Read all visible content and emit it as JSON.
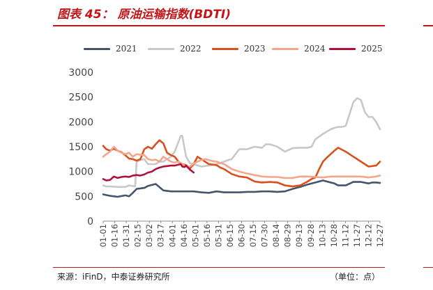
{
  "title": "图表 45：  原油运输指数(BDTI)",
  "footer": {
    "source": "来源：iFinD，中泰证券研究所",
    "unit": "（单位：点）"
  },
  "chart_data": {
    "type": "line",
    "title": "",
    "xlabel": "",
    "ylabel": "",
    "ylim": [
      0,
      3000
    ],
    "yticks": [
      0,
      500,
      1000,
      1500,
      2000,
      2500,
      3000
    ],
    "x_ticks": [
      "01-01",
      "01-16",
      "01-31",
      "02-15",
      "03-02",
      "03-17",
      "04-01",
      "04-16",
      "05-01",
      "05-16",
      "05-31",
      "06-15",
      "06-30",
      "07-15",
      "07-30",
      "08-14",
      "08-29",
      "09-13",
      "09-28",
      "10-13",
      "10-28",
      "11-12",
      "11-27",
      "12-12",
      "12-27"
    ],
    "grid": false,
    "legend_position": "top",
    "series": [
      {
        "name": "2021",
        "color": "#44546a",
        "x": [
          1,
          10,
          20,
          30,
          35,
          40,
          45,
          50,
          55,
          60,
          70,
          80,
          90,
          100,
          110,
          120,
          130,
          140,
          150,
          160,
          170,
          180,
          190,
          200,
          210,
          220,
          230,
          240,
          250,
          260,
          270,
          280,
          290,
          300,
          305,
          310,
          320,
          330,
          340,
          350,
          355,
          360,
          365
        ],
        "y": [
          540,
          510,
          490,
          520,
          500,
          570,
          650,
          660,
          670,
          710,
          750,
          620,
          600,
          600,
          600,
          600,
          580,
          570,
          600,
          580,
          580,
          580,
          590,
          590,
          600,
          600,
          590,
          600,
          650,
          690,
          740,
          780,
          820,
          780,
          760,
          720,
          720,
          790,
          790,
          760,
          780,
          780,
          770
        ]
      },
      {
        "name": "2022",
        "color": "#c8c8c8",
        "x": [
          1,
          5,
          10,
          20,
          30,
          35,
          40,
          43,
          45,
          50,
          55,
          60,
          70,
          75,
          80,
          85,
          90,
          95,
          100,
          103,
          105,
          110,
          115,
          120,
          130,
          140,
          150,
          160,
          165,
          170,
          180,
          190,
          200,
          210,
          215,
          220,
          230,
          240,
          250,
          260,
          270,
          275,
          280,
          290,
          300,
          305,
          310,
          315,
          320,
          330,
          335,
          340,
          345,
          350,
          355,
          360,
          365
        ],
        "y": [
          720,
          700,
          700,
          690,
          690,
          720,
          710,
          700,
          1200,
          1230,
          1250,
          1150,
          1150,
          1200,
          1200,
          1250,
          1300,
          1400,
          1600,
          1720,
          1720,
          1300,
          1170,
          1150,
          1100,
          1120,
          1150,
          1200,
          1230,
          1250,
          1450,
          1450,
          1500,
          1480,
          1550,
          1550,
          1500,
          1400,
          1470,
          1480,
          1480,
          1500,
          1650,
          1760,
          1850,
          1880,
          1900,
          1900,
          1920,
          2400,
          2480,
          2440,
          2200,
          2100,
          2100,
          2000,
          1850
        ]
      },
      {
        "name": "2023",
        "color": "#d94f1d",
        "x": [
          1,
          5,
          10,
          15,
          20,
          25,
          30,
          35,
          40,
          45,
          50,
          55,
          60,
          65,
          70,
          75,
          80,
          85,
          90,
          95,
          100,
          105,
          110,
          115,
          120,
          125,
          130,
          135,
          140,
          145,
          150,
          155,
          160,
          165,
          170,
          180,
          190,
          200,
          210,
          220,
          230,
          240,
          250,
          260,
          270,
          275,
          280,
          285,
          290,
          295,
          300,
          305,
          310,
          320,
          330,
          340,
          350,
          360,
          365
        ],
        "y": [
          1520,
          1450,
          1420,
          1460,
          1420,
          1390,
          1330,
          1260,
          1250,
          1220,
          1250,
          1450,
          1500,
          1460,
          1550,
          1630,
          1570,
          1380,
          1330,
          1300,
          1200,
          1150,
          1130,
          1060,
          1150,
          1300,
          1250,
          1200,
          1150,
          1140,
          1130,
          1080,
          1050,
          1000,
          950,
          900,
          880,
          800,
          780,
          790,
          780,
          720,
          700,
          720,
          800,
          850,
          880,
          1050,
          1200,
          1280,
          1350,
          1420,
          1480,
          1400,
          1300,
          1200,
          1100,
          1120,
          1200
        ]
      },
      {
        "name": "2024",
        "color": "#f4a58a",
        "x": [
          1,
          5,
          10,
          15,
          20,
          25,
          30,
          35,
          40,
          45,
          50,
          55,
          60,
          65,
          70,
          75,
          80,
          85,
          90,
          95,
          100,
          105,
          110,
          115,
          120,
          125,
          130,
          135,
          140,
          145,
          150,
          155,
          160,
          165,
          170,
          180,
          190,
          200,
          210,
          220,
          230,
          240,
          250,
          260,
          270,
          280,
          290,
          300,
          310,
          320,
          330,
          340,
          350,
          360,
          365
        ],
        "y": [
          1300,
          1350,
          1400,
          1500,
          1420,
          1380,
          1350,
          1380,
          1300,
          1350,
          1340,
          1330,
          1250,
          1230,
          1240,
          1200,
          1300,
          1250,
          1200,
          1180,
          1200,
          1150,
          1100,
          1100,
          1160,
          1200,
          1230,
          1250,
          1230,
          1210,
          1200,
          1170,
          1150,
          1100,
          1050,
          1000,
          960,
          930,
          900,
          890,
          890,
          870,
          870,
          900,
          900,
          890,
          880,
          900,
          900,
          900,
          900,
          900,
          880,
          900,
          920
        ]
      },
      {
        "name": "2025",
        "color": "#b0103a",
        "x": [
          1,
          5,
          10,
          15,
          20,
          25,
          30,
          35,
          40,
          45,
          50,
          55,
          60,
          65,
          70,
          75,
          80,
          85,
          90,
          95,
          100,
          103,
          105,
          108,
          110,
          115,
          120
        ],
        "y": [
          850,
          820,
          830,
          900,
          870,
          890,
          900,
          890,
          920,
          930,
          920,
          940,
          980,
          1000,
          1050,
          1080,
          1100,
          1110,
          1120,
          1120,
          1140,
          1150,
          1100,
          1090,
          1120,
          1040,
          980
        ]
      }
    ]
  }
}
